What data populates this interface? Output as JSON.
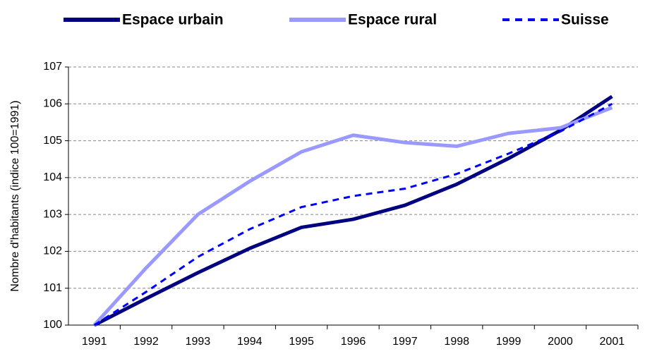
{
  "chart_data": {
    "type": "line",
    "y_label": "Nombre d'habitants (indice 100=1991)",
    "categories": [
      "1991",
      "1992",
      "1993",
      "1994",
      "1995",
      "1996",
      "1997",
      "1998",
      "1999",
      "2000",
      "2001"
    ],
    "series": [
      {
        "name": "Espace urbain",
        "color": "#000080",
        "style": "solid",
        "values": [
          100,
          100.72,
          101.42,
          102.08,
          102.65,
          102.87,
          103.25,
          103.82,
          104.52,
          105.28,
          106.2
        ]
      },
      {
        "name": "Espace rural",
        "color": "#9999ff",
        "style": "solid",
        "values": [
          100,
          101.55,
          103.0,
          103.9,
          104.7,
          105.15,
          104.95,
          104.85,
          105.2,
          105.35,
          105.9
        ]
      },
      {
        "name": "Suisse",
        "color": "#0000ff",
        "style": "dashed",
        "values": [
          100,
          100.9,
          101.85,
          102.6,
          103.2,
          103.5,
          103.7,
          104.1,
          104.65,
          105.25,
          106.0
        ]
      }
    ],
    "ylim": [
      100,
      107
    ],
    "yticks": [
      100,
      101,
      102,
      103,
      104,
      105,
      106,
      107
    ],
    "grid": true,
    "legend": "top"
  }
}
